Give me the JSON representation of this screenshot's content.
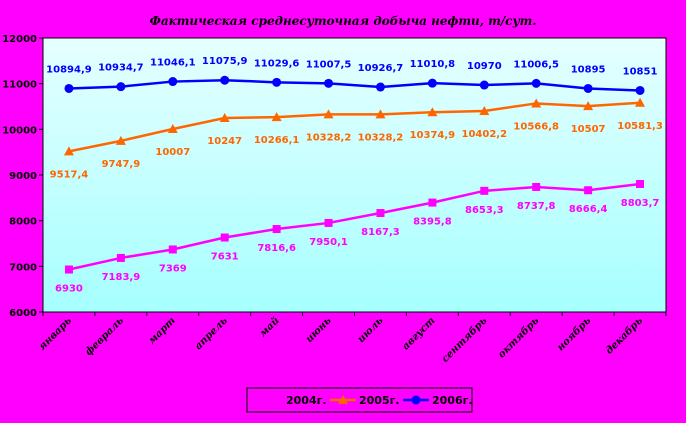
{
  "chart_data": {
    "type": "line",
    "title": "Фактическая среднесуточная добыча нефти, т/сут.",
    "xlabel": "",
    "ylabel": "",
    "categories": [
      "январь",
      "февраль",
      "март",
      "апрель",
      "май",
      "июнь",
      "июль",
      "август",
      "сентябрь",
      "октябрь",
      "ноябрь",
      "декабрь"
    ],
    "ylim": [
      6000,
      12000
    ],
    "yticks": [
      6000,
      7000,
      8000,
      9000,
      10000,
      11000,
      12000
    ],
    "grid": false,
    "legend_position": "bottom",
    "series": [
      {
        "name": "2004г.",
        "color": "#ff00ff",
        "marker": "square",
        "values": [
          6930,
          7183.9,
          7369,
          7631,
          7816.6,
          7950.1,
          8167.3,
          8395.8,
          8653.3,
          8737.8,
          8666.4,
          8803.7
        ],
        "labels": [
          "6930",
          "7183,9",
          "7369",
          "7631",
          "7816,6",
          "7950,1",
          "8167,3",
          "8395,8",
          "8653,3",
          "8737,8",
          "8666,4",
          "8803,7"
        ]
      },
      {
        "name": "2005г.",
        "color": "#ff6600",
        "marker": "triangle",
        "values": [
          9517.4,
          9747.9,
          10007,
          10247,
          10266.1,
          10328.2,
          10328.2,
          10374.9,
          10402.2,
          10566.8,
          10507,
          10581.3
        ],
        "labels": [
          "9517,4",
          "9747,9",
          "10007",
          "10247",
          "10266,1",
          "10328,2",
          "10328,2",
          "10374,9",
          "10402,2",
          "10566,8",
          "10507",
          "10581,3"
        ]
      },
      {
        "name": "2006г.",
        "color": "#0000ff",
        "marker": "circle",
        "values": [
          10894.9,
          10934.7,
          11046.1,
          11075.9,
          11029.6,
          11007.5,
          10926.7,
          11010.8,
          10970,
          11006.5,
          10895,
          10851
        ],
        "labels": [
          "10894,9",
          "10934,7",
          "11046,1",
          "11075,9",
          "11029,6",
          "11007,5",
          "10926,7",
          "11010,8",
          "10970",
          "11006,5",
          "10895",
          "10851"
        ]
      }
    ],
    "colors": {
      "background": "#ff00ff",
      "plot_top": "#e6ffff",
      "plot_bottom": "#a6ffff"
    }
  }
}
